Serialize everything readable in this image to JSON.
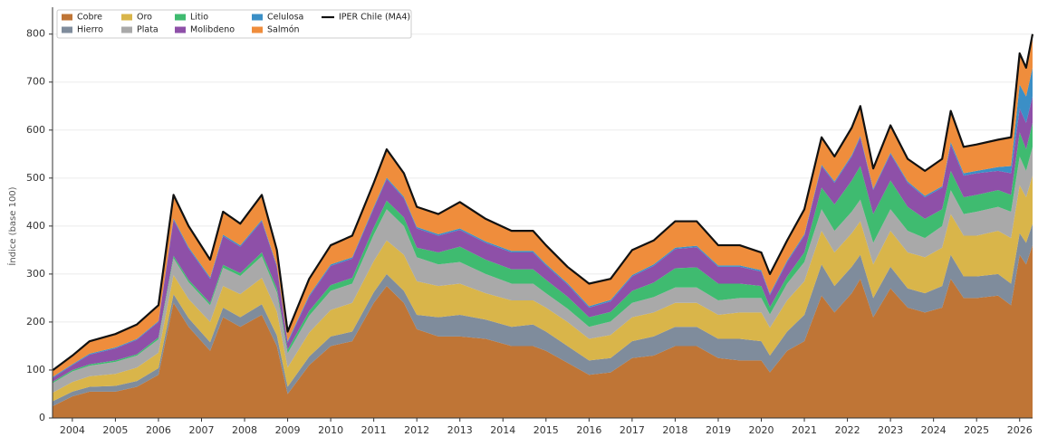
{
  "chart_data": {
    "type": "stacked_area",
    "y_label": "Índice (base 100)",
    "x": [
      2003.55,
      2004.0,
      2004.4,
      2005.0,
      2005.5,
      2006.0,
      2006.35,
      2006.7,
      2007.2,
      2007.5,
      2007.9,
      2008.4,
      2008.75,
      2009.0,
      2009.5,
      2010.0,
      2010.5,
      2011.0,
      2011.3,
      2011.7,
      2012.0,
      2012.5,
      2013.0,
      2013.6,
      2014.2,
      2014.7,
      2015.0,
      2015.5,
      2016.0,
      2016.5,
      2017.0,
      2017.5,
      2018.0,
      2018.5,
      2019.0,
      2019.5,
      2020.0,
      2020.2,
      2020.6,
      2021.0,
      2021.4,
      2021.7,
      2022.1,
      2022.3,
      2022.6,
      2023.0,
      2023.4,
      2023.8,
      2024.2,
      2024.4,
      2024.7,
      2025.0,
      2025.5,
      2025.8,
      2026.0,
      2026.15,
      2026.3
    ],
    "series": [
      {
        "name": "Cobre",
        "color": "#bf7536",
        "values": [
          25,
          45,
          55,
          55,
          65,
          90,
          240,
          190,
          140,
          210,
          190,
          215,
          150,
          50,
          110,
          150,
          160,
          240,
          275,
          240,
          185,
          170,
          170,
          165,
          150,
          150,
          140,
          115,
          90,
          95,
          125,
          130,
          150,
          150,
          125,
          120,
          120,
          95,
          140,
          160,
          255,
          220,
          260,
          290,
          210,
          270,
          230,
          220,
          230,
          290,
          250,
          250,
          255,
          235,
          340,
          320,
          360
        ]
      },
      {
        "name": "Hierro",
        "color": "#7f8c9c",
        "values": [
          10,
          10,
          10,
          12,
          12,
          14,
          18,
          18,
          18,
          20,
          20,
          22,
          22,
          15,
          18,
          20,
          20,
          22,
          25,
          25,
          30,
          40,
          45,
          40,
          40,
          45,
          40,
          35,
          30,
          30,
          35,
          40,
          40,
          40,
          40,
          45,
          40,
          35,
          40,
          55,
          65,
          55,
          55,
          50,
          40,
          45,
          40,
          40,
          45,
          50,
          45,
          45,
          45,
          45,
          45,
          45,
          45
        ]
      },
      {
        "name": "Oro",
        "color": "#d9b54a",
        "values": [
          18,
          20,
          22,
          25,
          28,
          32,
          40,
          40,
          42,
          45,
          48,
          55,
          50,
          40,
          50,
          55,
          60,
          65,
          70,
          75,
          70,
          65,
          65,
          55,
          55,
          50,
          50,
          50,
          45,
          48,
          50,
          50,
          50,
          50,
          50,
          55,
          60,
          58,
          65,
          70,
          70,
          70,
          70,
          70,
          70,
          75,
          75,
          75,
          80,
          85,
          85,
          85,
          90,
          95,
          100,
          95,
          100
        ]
      },
      {
        "name": "Plata",
        "color": "#a9a9a9",
        "values": [
          20,
          22,
          22,
          25,
          25,
          28,
          35,
          35,
          35,
          38,
          38,
          45,
          40,
          30,
          35,
          40,
          40,
          55,
          65,
          60,
          50,
          45,
          45,
          40,
          35,
          35,
          30,
          28,
          25,
          28,
          30,
          32,
          32,
          32,
          30,
          30,
          30,
          28,
          35,
          40,
          45,
          45,
          45,
          45,
          45,
          45,
          45,
          40,
          45,
          50,
          45,
          50,
          50,
          55,
          60,
          55,
          60
        ]
      },
      {
        "name": "Litio",
        "color": "#3fbb70",
        "values": [
          3,
          3,
          3,
          3,
          3,
          4,
          5,
          5,
          5,
          6,
          6,
          8,
          8,
          7,
          10,
          12,
          12,
          15,
          18,
          18,
          20,
          25,
          32,
          30,
          30,
          30,
          28,
          25,
          20,
          20,
          25,
          30,
          40,
          42,
          35,
          30,
          25,
          15,
          15,
          20,
          45,
          55,
          65,
          70,
          60,
          60,
          50,
          40,
          35,
          40,
          35,
          35,
          35,
          35,
          50,
          45,
          50
        ]
      },
      {
        "name": "Molibdeno",
        "color": "#8e50a8",
        "values": [
          8,
          10,
          20,
          25,
          30,
          32,
          75,
          65,
          50,
          60,
          55,
          65,
          45,
          15,
          30,
          40,
          40,
          40,
          45,
          40,
          40,
          35,
          35,
          35,
          35,
          35,
          30,
          25,
          20,
          22,
          30,
          35,
          40,
          42,
          35,
          35,
          30,
          25,
          30,
          35,
          45,
          45,
          50,
          60,
          50,
          55,
          50,
          45,
          45,
          55,
          45,
          45,
          40,
          45,
          50,
          55,
          55
        ]
      },
      {
        "name": "Celulosa",
        "color": "#3b8fc6",
        "values": [
          2,
          2,
          2,
          2,
          2,
          2,
          3,
          3,
          3,
          3,
          3,
          3,
          3,
          3,
          3,
          3,
          3,
          3,
          3,
          3,
          3,
          3,
          3,
          3,
          3,
          3,
          3,
          3,
          3,
          3,
          3,
          3,
          3,
          3,
          3,
          3,
          3,
          3,
          3,
          3,
          3,
          3,
          3,
          3,
          3,
          3,
          3,
          3,
          3,
          5,
          5,
          5,
          8,
          15,
          50,
          55,
          60
        ]
      },
      {
        "name": "Salmón",
        "color": "#ef8d3c",
        "values": [
          14,
          18,
          26,
          28,
          30,
          33,
          49,
          44,
          37,
          48,
          45,
          52,
          32,
          20,
          34,
          40,
          45,
          50,
          59,
          49,
          42,
          42,
          55,
          47,
          42,
          42,
          39,
          34,
          47,
          44,
          52,
          50,
          55,
          51,
          42,
          42,
          37,
          41,
          42,
          52,
          57,
          52,
          57,
          62,
          42,
          57,
          47,
          52,
          57,
          65,
          55,
          55,
          57,
          60,
          65,
          60,
          70
        ]
      }
    ],
    "line": {
      "name": "IPER Chile (MA4)",
      "color": "#111111",
      "values": [
        100,
        130,
        160,
        175,
        195,
        235,
        465,
        400,
        330,
        430,
        405,
        465,
        350,
        180,
        290,
        360,
        380,
        490,
        560,
        510,
        440,
        425,
        450,
        415,
        390,
        390,
        360,
        315,
        280,
        290,
        350,
        370,
        410,
        410,
        360,
        360,
        345,
        300,
        370,
        435,
        585,
        545,
        605,
        650,
        520,
        610,
        540,
        515,
        540,
        640,
        565,
        570,
        580,
        585,
        760,
        730,
        800
      ]
    },
    "xlim": [
      2003.54,
      2026.3
    ],
    "xticks": [
      2004,
      2005,
      2006,
      2007,
      2008,
      2009,
      2010,
      2011,
      2012,
      2013,
      2014,
      2015,
      2016,
      2017,
      2018,
      2019,
      2020,
      2021,
      2022,
      2023,
      2024,
      2025,
      2026
    ],
    "ylim": [
      0,
      856
    ],
    "yticks": [
      0,
      100,
      200,
      300,
      400,
      500,
      600,
      700,
      800
    ],
    "grid": true,
    "legend": "upper-left"
  }
}
